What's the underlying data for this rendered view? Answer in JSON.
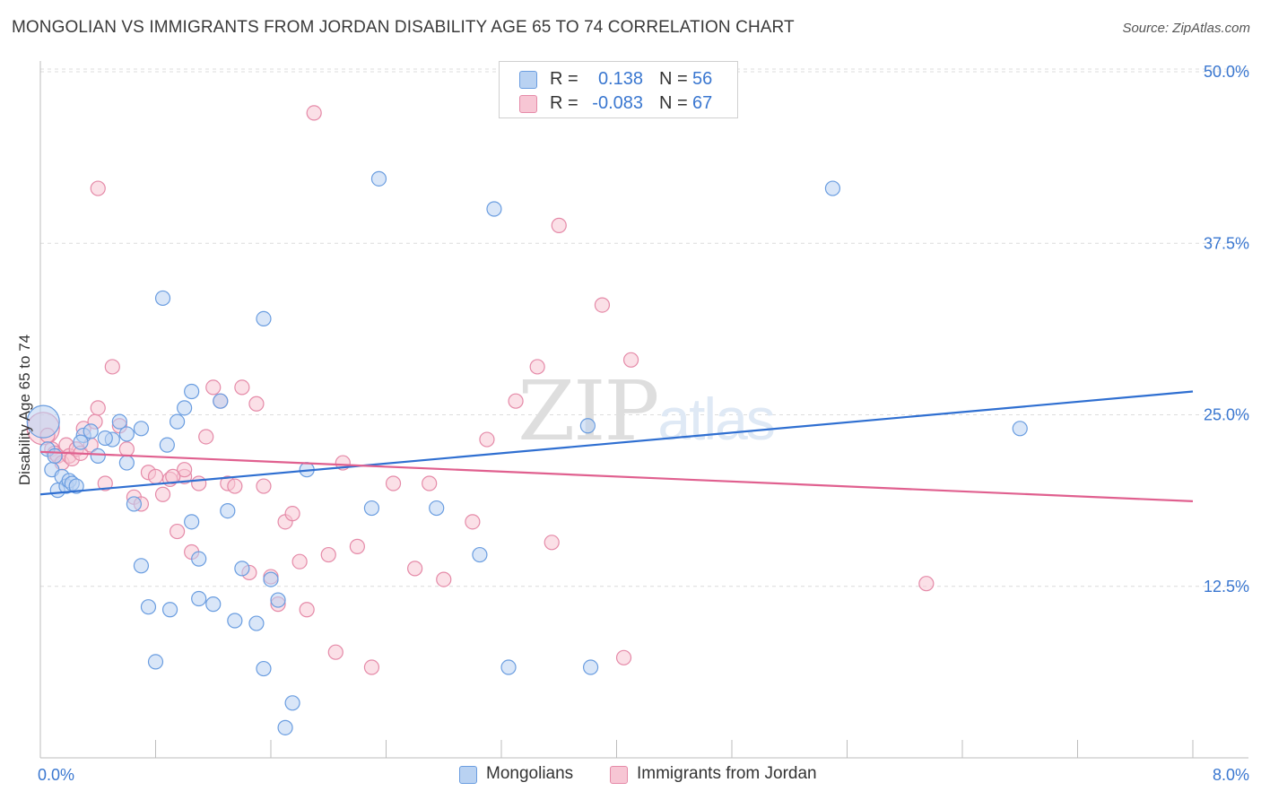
{
  "header": {
    "title": "MONGOLIAN VS IMMIGRANTS FROM JORDAN DISABILITY AGE 65 TO 74 CORRELATION CHART",
    "source": "Source: ZipAtlas.com"
  },
  "watermark": "ZIPatlas",
  "legend": {
    "rows": [
      {
        "r_label": "R =",
        "r_value": "0.138",
        "n_label": "N =",
        "n_value": "56",
        "color": "#a9c8f0"
      },
      {
        "r_label": "R =",
        "r_value": "-0.083",
        "n_label": "N =",
        "n_value": "67",
        "color": "#f5b7c9"
      }
    ]
  },
  "bottom_legend": {
    "mongolians": "Mongolians",
    "jordan": "Immigrants from Jordan"
  },
  "colors": {
    "blue_fill": "#b9d2f2",
    "blue_stroke": "#6a9de0",
    "blue_line": "#2f6fd1",
    "pink_fill": "#f7c6d4",
    "pink_stroke": "#e58aa8",
    "pink_line": "#e0608f",
    "tick_text": "#3a77d0",
    "grid": "#dcdcdc"
  },
  "chart_data": {
    "type": "scatter",
    "title": "MONGOLIAN VS IMMIGRANTS FROM JORDAN DISABILITY AGE 65 TO 74 CORRELATION CHART",
    "xlabel": "",
    "ylabel": "Disability Age 65 to 74",
    "xlim": [
      0,
      8
    ],
    "ylim": [
      0,
      52
    ],
    "x_tick_labels": [
      "0.0%",
      "8.0%"
    ],
    "y_ticks": [
      12.5,
      25.0,
      37.5,
      50.0
    ],
    "y_tick_labels": [
      "12.5%",
      "25.0%",
      "37.5%",
      "50.0%"
    ],
    "grid": true,
    "legend_position": "top-center",
    "series": [
      {
        "name": "Mongolians",
        "r": 0.138,
        "n": 56,
        "trend": {
          "x": [
            0,
            8
          ],
          "y": [
            19.2,
            26.7
          ]
        },
        "x": [
          0.02,
          0.05,
          0.08,
          0.1,
          0.12,
          0.15,
          0.18,
          0.2,
          0.22,
          0.25,
          0.3,
          0.35,
          0.4,
          0.5,
          0.55,
          0.6,
          0.65,
          0.7,
          0.75,
          0.8,
          0.85,
          0.9,
          1.05,
          1.1,
          1.1,
          1.2,
          1.35,
          1.5,
          0.88,
          1.3,
          1.4,
          0.95,
          1.05,
          1.25,
          1.55,
          1.6,
          1.65,
          1.75,
          1.55,
          1.7,
          1.85,
          2.3,
          2.35,
          2.75,
          3.05,
          3.15,
          3.25,
          3.8,
          3.82,
          5.5,
          6.8,
          1.0,
          0.7,
          0.6,
          0.28,
          0.45
        ],
        "y": [
          24.5,
          22.5,
          21.0,
          22.0,
          19.5,
          20.5,
          19.8,
          20.2,
          20.0,
          19.8,
          23.5,
          23.8,
          22.0,
          23.2,
          24.5,
          21.5,
          18.5,
          14.0,
          11.0,
          7.0,
          33.5,
          10.8,
          17.2,
          14.5,
          11.6,
          11.2,
          10.0,
          9.8,
          22.8,
          18.0,
          13.8,
          24.5,
          26.7,
          26.0,
          32.0,
          13.0,
          11.5,
          4.0,
          6.5,
          2.2,
          21.0,
          18.2,
          42.2,
          18.2,
          14.8,
          40.0,
          6.6,
          24.2,
          6.6,
          41.5,
          24.0,
          25.5,
          24.0,
          23.6,
          23.0,
          23.3
        ]
      },
      {
        "name": "Immigrants from Jordan",
        "r": -0.083,
        "n": 67,
        "trend": {
          "x": [
            0,
            8
          ],
          "y": [
            22.3,
            18.7
          ]
        },
        "x": [
          0.02,
          0.05,
          0.08,
          0.1,
          0.12,
          0.15,
          0.18,
          0.2,
          0.22,
          0.25,
          0.28,
          0.3,
          0.35,
          0.38,
          0.4,
          0.45,
          0.5,
          0.55,
          0.6,
          0.65,
          0.7,
          0.75,
          0.8,
          0.85,
          0.9,
          0.95,
          1.0,
          1.05,
          1.1,
          1.15,
          1.2,
          1.25,
          1.3,
          1.35,
          1.4,
          1.45,
          1.5,
          1.55,
          1.6,
          1.65,
          1.7,
          1.75,
          1.8,
          1.85,
          1.9,
          2.0,
          2.05,
          2.1,
          2.2,
          2.3,
          2.45,
          2.6,
          2.7,
          2.8,
          3.0,
          3.1,
          3.3,
          3.45,
          3.55,
          3.6,
          3.9,
          4.05,
          4.1,
          1.0,
          0.92,
          6.15,
          0.4
        ],
        "y": [
          24.0,
          23.5,
          22.5,
          22.2,
          22.0,
          21.5,
          22.8,
          22.0,
          21.8,
          22.5,
          22.2,
          24.0,
          22.8,
          24.5,
          25.5,
          20.0,
          28.5,
          24.2,
          22.5,
          19.0,
          18.5,
          20.8,
          20.5,
          19.2,
          20.3,
          16.5,
          20.5,
          15.0,
          20.0,
          23.4,
          27.0,
          26.0,
          20.0,
          19.8,
          27.0,
          13.5,
          25.8,
          19.8,
          13.2,
          11.2,
          17.2,
          17.8,
          14.3,
          10.8,
          47.0,
          14.8,
          7.7,
          21.5,
          15.4,
          6.6,
          20.0,
          13.8,
          20.0,
          13.0,
          17.2,
          23.2,
          26.0,
          28.5,
          15.7,
          38.8,
          33.0,
          7.3,
          29.0,
          21.0,
          20.5,
          12.7,
          41.5
        ]
      }
    ]
  }
}
